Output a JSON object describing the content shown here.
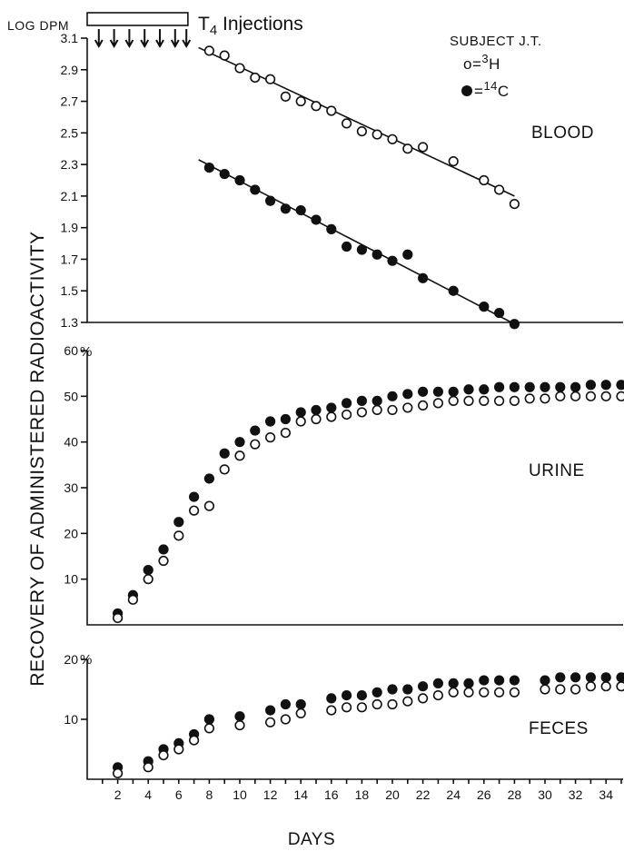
{
  "figure": {
    "y_axis_label": "RECOVERY OF ADMINISTERED   RADIOACTIVITY",
    "x_axis_label": "DAYS",
    "subject": "SUBJECT J.T.",
    "legend": [
      {
        "symbol": "open",
        "text_pre": "o=",
        "sup": "3",
        "text_post": "H"
      },
      {
        "symbol": "filled",
        "text_pre": "=",
        "sup": "14",
        "text_post": "C"
      }
    ],
    "injection_label": "T",
    "injection_label_sub": "4",
    "injection_label_rest": " Injections"
  },
  "chart_data": [
    {
      "type": "scatter",
      "panel": "BLOOD",
      "title": "BLOOD",
      "ylabel": "LOG DPM",
      "ylim": [
        1.3,
        3.1
      ],
      "yticks": [
        "1.3",
        "1.5",
        "1.7",
        "1.9",
        "2.1",
        "2.3",
        "2.5",
        "2.7",
        "2.9",
        "3.1"
      ],
      "xlim": [
        0,
        35
      ],
      "injections": {
        "days": [
          1,
          2,
          3,
          4,
          5,
          6
        ],
        "bar_start": 0,
        "bar_end": 6.6
      },
      "series": [
        {
          "symbol": "open",
          "x": [
            8,
            9,
            10,
            11,
            12,
            13,
            14,
            15,
            16,
            17,
            18,
            19,
            20,
            21,
            22,
            24,
            26,
            27,
            28
          ],
          "y": [
            3.02,
            2.99,
            2.91,
            2.85,
            2.84,
            2.73,
            2.7,
            2.67,
            2.64,
            2.56,
            2.51,
            2.49,
            2.46,
            2.4,
            2.41,
            2.32,
            2.2,
            2.14,
            2.05
          ],
          "fit": [
            [
              7.3,
              3.04
            ],
            [
              28,
              2.1
            ]
          ]
        },
        {
          "symbol": "filled",
          "x": [
            8,
            9,
            10,
            11,
            12,
            13,
            14,
            15,
            16,
            17,
            18,
            19,
            20,
            21,
            22,
            24,
            26,
            27,
            28
          ],
          "y": [
            2.28,
            2.24,
            2.2,
            2.14,
            2.07,
            2.02,
            2.01,
            1.95,
            1.89,
            1.78,
            1.76,
            1.73,
            1.69,
            1.73,
            1.58,
            1.5,
            1.4,
            1.36,
            1.29
          ],
          "fit": [
            [
              7.3,
              2.33
            ],
            [
              28.2,
              1.28
            ]
          ]
        }
      ]
    },
    {
      "type": "scatter",
      "panel": "URINE",
      "title": "URINE",
      "ylabel": "%",
      "ylim": [
        0,
        60
      ],
      "yticks": [
        "10",
        "20",
        "30",
        "40",
        "50",
        "60"
      ],
      "xlim": [
        0,
        35
      ],
      "series": [
        {
          "symbol": "filled",
          "x": [
            2,
            3,
            4,
            5,
            6,
            7,
            8,
            9,
            10,
            11,
            12,
            13,
            14,
            15,
            16,
            17,
            18,
            19,
            20,
            21,
            22,
            23,
            24,
            25,
            26,
            27,
            28,
            29,
            30,
            31,
            32,
            33,
            34,
            35
          ],
          "y": [
            2.5,
            6.5,
            12,
            16.5,
            22.5,
            28,
            32,
            37.5,
            40,
            42.5,
            44.5,
            45,
            46.5,
            47,
            47.5,
            48.5,
            49,
            49,
            50,
            50.5,
            51,
            51,
            51,
            51.5,
            51.5,
            52,
            52,
            52,
            52,
            52,
            52,
            52.5,
            52.5,
            52.5
          ]
        },
        {
          "symbol": "open",
          "x": [
            2,
            3,
            4,
            5,
            6,
            7,
            8,
            9,
            10,
            11,
            12,
            13,
            14,
            15,
            16,
            17,
            18,
            19,
            20,
            21,
            22,
            23,
            24,
            25,
            26,
            27,
            28,
            29,
            30,
            31,
            32,
            33,
            34,
            35
          ],
          "y": [
            1.5,
            5.5,
            10,
            14,
            19.5,
            25,
            26,
            34,
            37,
            39.5,
            41,
            42,
            44.5,
            45,
            45.5,
            46,
            46.5,
            47,
            47,
            47.5,
            48,
            48.5,
            49,
            49,
            49,
            49,
            49,
            49.5,
            49.5,
            50,
            50,
            50,
            50,
            50
          ]
        }
      ]
    },
    {
      "type": "scatter",
      "panel": "FECES",
      "title": "FECES",
      "ylabel": "%",
      "ylim": [
        0,
        20
      ],
      "yticks": [
        "10",
        "20"
      ],
      "xlim": [
        0,
        35
      ],
      "xticks": [
        "2",
        "4",
        "6",
        "8",
        "10",
        "12",
        "14",
        "16",
        "18",
        "20",
        "22",
        "24",
        "26",
        "28",
        "30",
        "32",
        "34"
      ],
      "series": [
        {
          "symbol": "filled",
          "x": [
            2,
            4,
            5,
            6,
            7,
            8,
            10,
            12,
            13,
            14,
            16,
            17,
            18,
            19,
            20,
            21,
            22,
            23,
            24,
            25,
            26,
            27,
            28,
            30,
            31,
            32,
            33,
            34,
            35
          ],
          "y": [
            2,
            3,
            5,
            6,
            7.5,
            10,
            10.5,
            11.5,
            12.5,
            12.5,
            13.5,
            14,
            14,
            14.5,
            15,
            15,
            15.5,
            16,
            16,
            16,
            16.5,
            16.5,
            16.5,
            16.5,
            17,
            17,
            17,
            17,
            17
          ]
        },
        {
          "symbol": "open",
          "x": [
            2,
            4,
            5,
            6,
            7,
            8,
            10,
            12,
            13,
            14,
            16,
            17,
            18,
            19,
            20,
            21,
            22,
            23,
            24,
            25,
            26,
            27,
            28,
            30,
            31,
            32,
            33,
            34,
            35
          ],
          "y": [
            1,
            2,
            4,
            5,
            6.5,
            8.5,
            9,
            9.5,
            10,
            11,
            11.5,
            12,
            12,
            12.5,
            12.5,
            13,
            13.5,
            14,
            14.5,
            14.5,
            14.5,
            14.5,
            14.5,
            15,
            15,
            15,
            15.5,
            15.5,
            15.5
          ]
        }
      ]
    }
  ]
}
